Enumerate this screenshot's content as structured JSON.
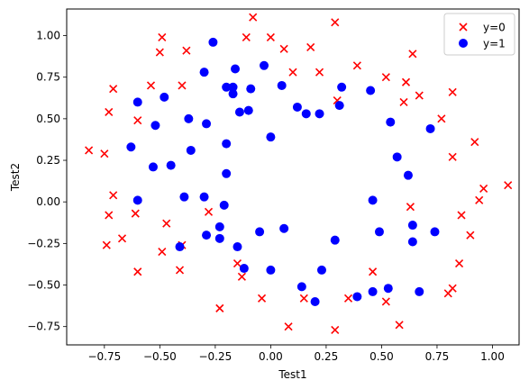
{
  "chart_data": {
    "type": "scatter",
    "title": "",
    "xlabel": "Test1",
    "ylabel": "Test2",
    "xlim": [
      -0.92,
      1.12
    ],
    "ylim": [
      -0.86,
      1.16
    ],
    "xticks": [
      -0.75,
      -0.5,
      -0.25,
      0.0,
      0.25,
      0.5,
      0.75,
      1.0
    ],
    "xtick_labels": [
      "−0.75",
      "−0.50",
      "−0.25",
      "0.00",
      "0.25",
      "0.50",
      "0.75",
      "1.00"
    ],
    "yticks": [
      -0.75,
      -0.5,
      -0.25,
      0.0,
      0.25,
      0.5,
      0.75,
      1.0
    ],
    "ytick_labels": [
      "−0.75",
      "−0.50",
      "−0.25",
      "0.00",
      "0.25",
      "0.50",
      "0.75",
      "1.00"
    ],
    "grid": false,
    "legend_position": "top-right",
    "series": [
      {
        "name": "y=0",
        "marker": "x",
        "color": "#ff0000",
        "points": [
          [
            -0.08,
            1.11
          ],
          [
            0.29,
            1.08
          ],
          [
            -0.49,
            0.99
          ],
          [
            -0.11,
            0.99
          ],
          [
            0.0,
            0.99
          ],
          [
            -0.5,
            0.9
          ],
          [
            -0.38,
            0.91
          ],
          [
            0.06,
            0.92
          ],
          [
            0.18,
            0.93
          ],
          [
            0.64,
            0.89
          ],
          [
            0.39,
            0.82
          ],
          [
            0.1,
            0.78
          ],
          [
            0.22,
            0.78
          ],
          [
            0.52,
            0.75
          ],
          [
            -0.71,
            0.68
          ],
          [
            -0.54,
            0.7
          ],
          [
            -0.4,
            0.7
          ],
          [
            0.61,
            0.72
          ],
          [
            0.82,
            0.66
          ],
          [
            0.67,
            0.64
          ],
          [
            0.3,
            0.61
          ],
          [
            0.6,
            0.6
          ],
          [
            -0.73,
            0.54
          ],
          [
            -0.6,
            0.49
          ],
          [
            0.77,
            0.5
          ],
          [
            0.92,
            0.36
          ],
          [
            -0.82,
            0.31
          ],
          [
            -0.75,
            0.29
          ],
          [
            0.82,
            0.27
          ],
          [
            1.07,
            0.1
          ],
          [
            0.96,
            0.08
          ],
          [
            -0.71,
            0.04
          ],
          [
            0.94,
            0.01
          ],
          [
            0.63,
            -0.03
          ],
          [
            -0.61,
            -0.07
          ],
          [
            -0.28,
            -0.06
          ],
          [
            -0.73,
            -0.08
          ],
          [
            0.86,
            -0.08
          ],
          [
            -0.47,
            -0.13
          ],
          [
            0.9,
            -0.2
          ],
          [
            -0.67,
            -0.22
          ],
          [
            -0.74,
            -0.26
          ],
          [
            -0.4,
            -0.26
          ],
          [
            -0.49,
            -0.3
          ],
          [
            -0.15,
            -0.37
          ],
          [
            0.85,
            -0.37
          ],
          [
            -0.41,
            -0.41
          ],
          [
            -0.6,
            -0.42
          ],
          [
            0.46,
            -0.42
          ],
          [
            -0.13,
            -0.45
          ],
          [
            0.8,
            -0.55
          ],
          [
            0.82,
            -0.52
          ],
          [
            -0.04,
            -0.58
          ],
          [
            0.15,
            -0.58
          ],
          [
            0.35,
            -0.58
          ],
          [
            0.52,
            -0.6
          ],
          [
            -0.23,
            -0.64
          ],
          [
            0.58,
            -0.74
          ],
          [
            0.08,
            -0.75
          ],
          [
            0.29,
            -0.77
          ]
        ]
      },
      {
        "name": "y=1",
        "marker": "o",
        "color": "#0000ff",
        "points": [
          [
            -0.26,
            0.96
          ],
          [
            -0.03,
            0.82
          ],
          [
            -0.16,
            0.8
          ],
          [
            -0.3,
            0.78
          ],
          [
            -0.48,
            0.63
          ],
          [
            -0.6,
            0.6
          ],
          [
            -0.2,
            0.69
          ],
          [
            -0.17,
            0.69
          ],
          [
            -0.09,
            0.68
          ],
          [
            0.05,
            0.7
          ],
          [
            0.32,
            0.69
          ],
          [
            0.45,
            0.67
          ],
          [
            -0.17,
            0.65
          ],
          [
            0.12,
            0.57
          ],
          [
            0.16,
            0.53
          ],
          [
            0.22,
            0.53
          ],
          [
            0.31,
            0.58
          ],
          [
            -0.14,
            0.54
          ],
          [
            -0.1,
            0.55
          ],
          [
            -0.37,
            0.5
          ],
          [
            -0.52,
            0.46
          ],
          [
            -0.29,
            0.47
          ],
          [
            0.54,
            0.48
          ],
          [
            0.72,
            0.44
          ],
          [
            0.0,
            0.39
          ],
          [
            -0.2,
            0.35
          ],
          [
            -0.36,
            0.31
          ],
          [
            -0.63,
            0.33
          ],
          [
            0.57,
            0.27
          ],
          [
            -0.53,
            0.21
          ],
          [
            -0.45,
            0.22
          ],
          [
            -0.2,
            0.17
          ],
          [
            0.62,
            0.16
          ],
          [
            -0.39,
            0.03
          ],
          [
            -0.3,
            0.03
          ],
          [
            -0.6,
            0.01
          ],
          [
            0.46,
            0.01
          ],
          [
            -0.21,
            -0.02
          ],
          [
            -0.23,
            -0.15
          ],
          [
            -0.29,
            -0.2
          ],
          [
            -0.23,
            -0.22
          ],
          [
            0.06,
            -0.16
          ],
          [
            -0.05,
            -0.18
          ],
          [
            0.49,
            -0.18
          ],
          [
            0.64,
            -0.14
          ],
          [
            0.74,
            -0.18
          ],
          [
            0.29,
            -0.23
          ],
          [
            0.64,
            -0.24
          ],
          [
            -0.15,
            -0.27
          ],
          [
            -0.41,
            -0.27
          ],
          [
            -0.12,
            -0.4
          ],
          [
            0.0,
            -0.41
          ],
          [
            0.23,
            -0.41
          ],
          [
            0.53,
            -0.52
          ],
          [
            0.46,
            -0.54
          ],
          [
            0.67,
            -0.54
          ],
          [
            0.14,
            -0.51
          ],
          [
            0.39,
            -0.57
          ],
          [
            0.2,
            -0.6
          ]
        ]
      }
    ]
  },
  "legend": {
    "items": [
      {
        "label": "y=0",
        "marker": "x",
        "color": "#ff0000"
      },
      {
        "label": "y=1",
        "marker": "o",
        "color": "#0000ff"
      }
    ]
  }
}
